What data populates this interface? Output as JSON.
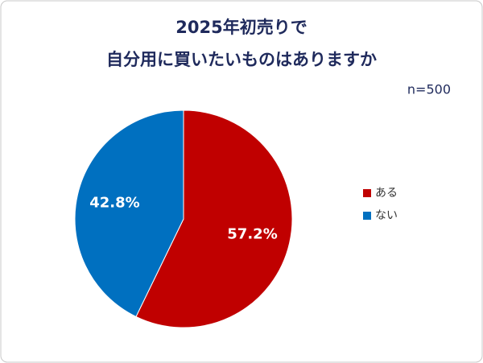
{
  "chart_data": {
    "type": "pie",
    "title": [
      "2025年初売りで",
      "自分用に買いたいものはありますか"
    ],
    "subtitle": "n=500",
    "categories": [
      "ある",
      "ない"
    ],
    "values": [
      57.2,
      42.8
    ],
    "value_labels": [
      "57.2%",
      "42.8%"
    ],
    "colors": [
      "#c00000",
      "#0070c0"
    ],
    "legend": "right"
  }
}
